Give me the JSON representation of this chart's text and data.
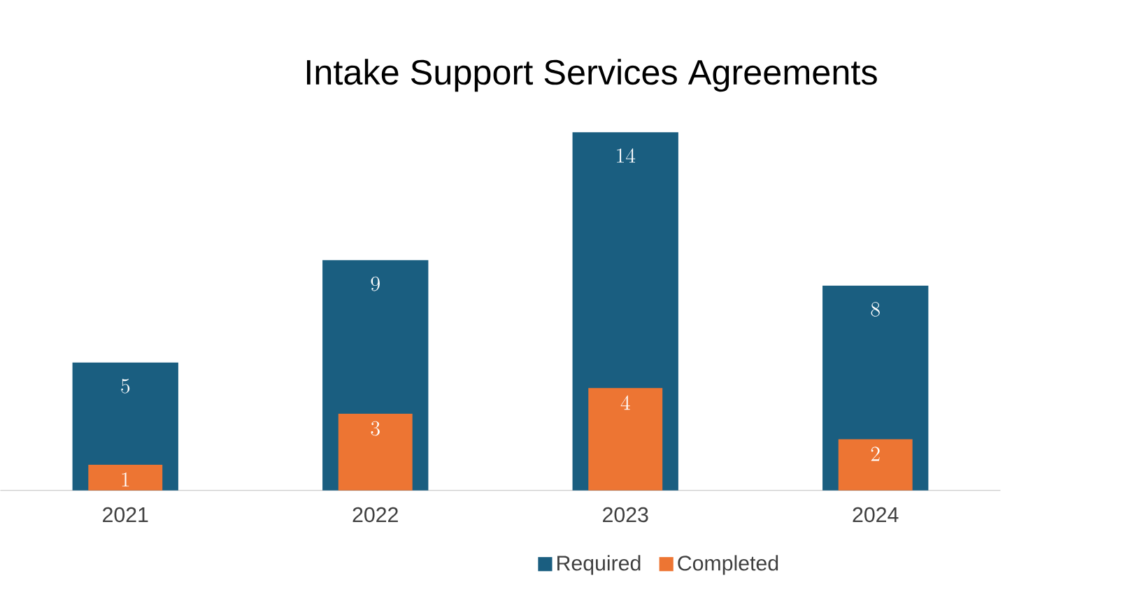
{
  "chart_data": {
    "type": "bar",
    "title": "Intake Support Services Agreements",
    "categories": [
      "2021",
      "2022",
      "2023",
      "2024"
    ],
    "series": [
      {
        "name": "Required",
        "color": "#1a5e80",
        "values": [
          5,
          9,
          14,
          8
        ]
      },
      {
        "name": "Completed",
        "color": "#ed7533",
        "values": [
          1,
          3,
          4,
          2
        ]
      }
    ],
    "data_labels": true,
    "legend": "bottom"
  }
}
